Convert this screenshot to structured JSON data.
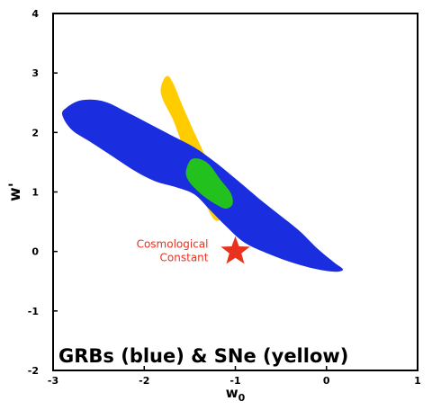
{
  "chart_data": {
    "type": "scatter",
    "title": "GRBs (blue) & SNe (yellow)",
    "xlabel_base": "w",
    "xlabel_sub": "0",
    "ylabel": "w'",
    "xlim": [
      -3,
      1
    ],
    "ylim": [
      -2,
      4
    ],
    "x_ticks": [
      -3,
      -2,
      -1,
      0,
      1
    ],
    "y_ticks": [
      -2,
      -1,
      0,
      1,
      2,
      3,
      4
    ],
    "grid": false,
    "colors": {
      "grbs": "#1a2ee0",
      "sne": "#ffcc00",
      "overlap": "#22c11e",
      "marker": "#e8321e"
    },
    "regions": [
      {
        "id": "sne",
        "color": "#ffcc00",
        "points": [
          [
            -1.82,
            2.7
          ],
          [
            -1.79,
            2.88
          ],
          [
            -1.74,
            2.95
          ],
          [
            -1.68,
            2.82
          ],
          [
            -1.58,
            2.45
          ],
          [
            -1.45,
            2.0
          ],
          [
            -1.3,
            1.5
          ],
          [
            -1.2,
            1.12
          ],
          [
            -1.13,
            0.8
          ],
          [
            -1.12,
            0.6
          ],
          [
            -1.18,
            0.52
          ],
          [
            -1.24,
            0.55
          ],
          [
            -1.32,
            0.78
          ],
          [
            -1.44,
            1.2
          ],
          [
            -1.56,
            1.7
          ],
          [
            -1.68,
            2.2
          ],
          [
            -1.78,
            2.5
          ]
        ]
      },
      {
        "id": "grbs",
        "color": "#1a2ee0",
        "points": [
          [
            -2.9,
            2.3
          ],
          [
            -2.85,
            2.42
          ],
          [
            -2.72,
            2.53
          ],
          [
            -2.56,
            2.55
          ],
          [
            -2.4,
            2.5
          ],
          [
            -2.2,
            2.35
          ],
          [
            -1.95,
            2.15
          ],
          [
            -1.7,
            1.95
          ],
          [
            -1.45,
            1.75
          ],
          [
            -1.22,
            1.5
          ],
          [
            -0.98,
            1.2
          ],
          [
            -0.75,
            0.9
          ],
          [
            -0.52,
            0.62
          ],
          [
            -0.3,
            0.35
          ],
          [
            -0.1,
            0.05
          ],
          [
            0.08,
            -0.18
          ],
          [
            0.18,
            -0.3
          ],
          [
            0.1,
            -0.34
          ],
          [
            -0.1,
            -0.3
          ],
          [
            -0.35,
            -0.2
          ],
          [
            -0.62,
            -0.05
          ],
          [
            -0.9,
            0.15
          ],
          [
            -1.1,
            0.42
          ],
          [
            -1.28,
            0.7
          ],
          [
            -1.45,
            0.96
          ],
          [
            -1.65,
            1.08
          ],
          [
            -1.88,
            1.18
          ],
          [
            -2.1,
            1.35
          ],
          [
            -2.35,
            1.6
          ],
          [
            -2.6,
            1.85
          ],
          [
            -2.8,
            2.05
          ]
        ]
      },
      {
        "id": "overlap",
        "color": "#22c11e",
        "points": [
          [
            -1.53,
            1.42
          ],
          [
            -1.48,
            1.55
          ],
          [
            -1.38,
            1.55
          ],
          [
            -1.28,
            1.45
          ],
          [
            -1.16,
            1.2
          ],
          [
            -1.05,
            0.98
          ],
          [
            -1.03,
            0.8
          ],
          [
            -1.1,
            0.72
          ],
          [
            -1.2,
            0.78
          ],
          [
            -1.34,
            0.92
          ],
          [
            -1.48,
            1.12
          ],
          [
            -1.54,
            1.28
          ]
        ]
      }
    ],
    "marker": {
      "x": -1.0,
      "y": 0.0,
      "symbol": "star",
      "color": "#e8321e",
      "label_line1": "Cosmological",
      "label_line2": "Constant"
    }
  }
}
